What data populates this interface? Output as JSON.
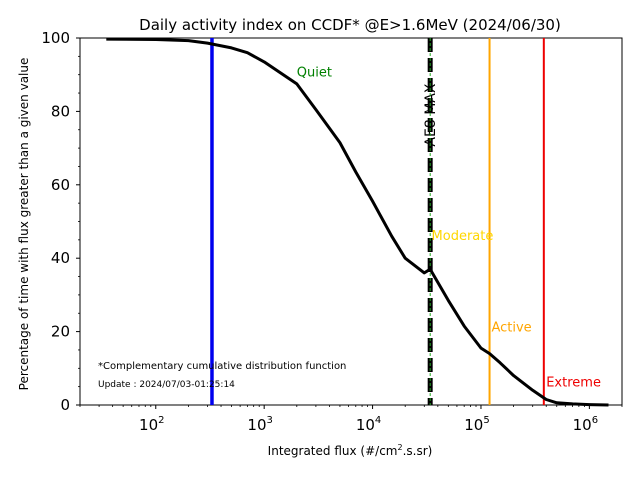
{
  "chart_data": {
    "type": "line",
    "title": "Daily activity index on CCDF* @E>1.6MeV (2024/06/30)",
    "xlabel": "Integrated flux (#/cm².s.sr)",
    "ylabel": "Percentage of time with flux greater than a given value",
    "xscale": "log",
    "xlim": [
      20,
      2000000
    ],
    "ylim": [
      0,
      100
    ],
    "x_ticks": [
      {
        "value": 100,
        "base": "10",
        "exp": "2"
      },
      {
        "value": 1000,
        "base": "10",
        "exp": "3"
      },
      {
        "value": 10000,
        "base": "10",
        "exp": "4"
      },
      {
        "value": 100000,
        "base": "10",
        "exp": "5"
      },
      {
        "value": 1000000,
        "base": "10",
        "exp": "6"
      }
    ],
    "y_ticks": [
      "0",
      "20",
      "40",
      "60",
      "80",
      "100"
    ],
    "grid": false,
    "series": [
      {
        "color": "#000000",
        "x": [
          35,
          100,
          200,
          300,
          500,
          700,
          1000,
          2000,
          3000,
          5000,
          7000,
          10000,
          15000,
          20000,
          30000,
          34000,
          50000,
          70000,
          100000,
          120000,
          150000,
          200000,
          300000,
          400000,
          500000,
          700000,
          1000000,
          1500000
        ],
        "y": [
          99.7,
          99.6,
          99.3,
          98.6,
          97.3,
          96.0,
          93.5,
          87.5,
          80.5,
          71.5,
          63.5,
          55.5,
          46.0,
          40.0,
          36.0,
          37.0,
          28.5,
          21.5,
          15.5,
          14.0,
          11.5,
          8.0,
          4.0,
          1.5,
          0.6,
          0.3,
          0.1,
          0.0
        ]
      }
    ],
    "vertical_lines": [
      {
        "x": 330,
        "color": "#0000ee",
        "style": "solid",
        "label": ""
      },
      {
        "x": 34000,
        "color": "#000000",
        "style": "dashed",
        "label": "AE8 MAX"
      },
      {
        "x": 34000,
        "color": "#22aa22",
        "style": "solid",
        "label": ""
      },
      {
        "x": 120000,
        "color": "#ffa500",
        "style": "solid",
        "label": ""
      },
      {
        "x": 380000,
        "color": "#ee0000",
        "style": "solid",
        "label": ""
      }
    ],
    "annotations": [
      {
        "text": "Quiet",
        "x": 2000,
        "y": 89.5,
        "color": "#008000"
      },
      {
        "text": "Moderate",
        "x": 35000,
        "y": 45,
        "color": "#ffd700"
      },
      {
        "text": "Active",
        "x": 125000,
        "y": 20,
        "color": "#ffa500"
      },
      {
        "text": "Extreme",
        "x": 400000,
        "y": 5,
        "color": "#ee0000"
      }
    ],
    "footnote": "*Complementary cumulative distribution function",
    "update_text": "Update : 2024/07/03-01:25:14"
  }
}
